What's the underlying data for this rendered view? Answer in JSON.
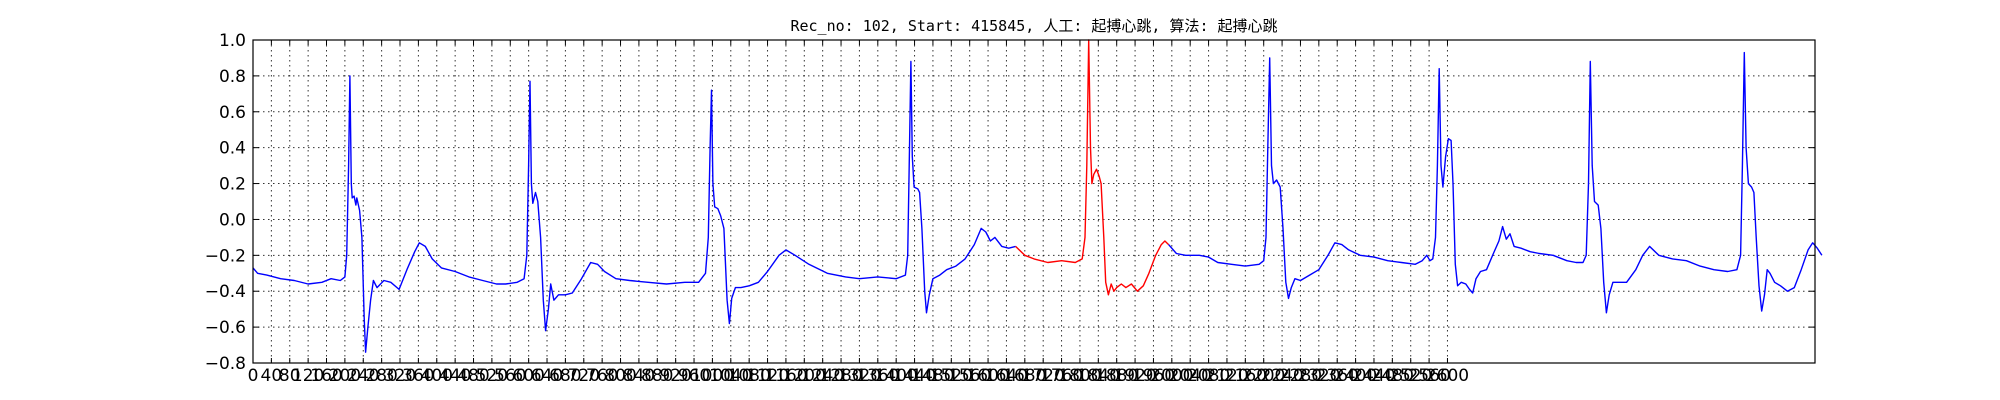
{
  "chart_data": {
    "type": "line",
    "title": "Rec_no: 102, Start: 415845, 人工: 起搏心跳, 算法: 起搏心跳",
    "xlabel": "",
    "ylabel": "",
    "xlim": [
      0,
      3400
    ],
    "ylim": [
      -0.8,
      1.0
    ],
    "yticks": [
      1.0,
      0.8,
      0.6,
      0.4,
      0.2,
      0.0,
      -0.2,
      -0.4,
      -0.6,
      -0.8
    ],
    "ytick_labels": [
      "1.0",
      "0.8",
      "0.6",
      "0.4",
      "0.2",
      "0.0",
      "−0.2",
      "−0.4",
      "−0.6",
      "−0.8"
    ],
    "xticks": [
      0,
      40,
      80,
      120,
      160,
      200,
      240,
      280,
      320,
      360,
      400,
      440,
      480,
      520,
      560,
      600,
      640,
      680,
      720,
      760,
      800,
      840,
      880,
      920,
      960,
      1000,
      1040,
      1080,
      1120,
      1160,
      1200,
      1240,
      1280,
      1320,
      1360,
      1400,
      1440,
      1480,
      1520,
      1560,
      1600,
      1640,
      1680,
      1720,
      1760,
      1800,
      1840,
      1880,
      1920,
      1960,
      2000,
      2040,
      2080,
      2120,
      2160,
      2200,
      2240,
      2280,
      2320,
      2360,
      2400,
      2440,
      2480,
      2520,
      2560,
      2600
    ],
    "xtick_labels": [
      "0",
      "40",
      "80",
      "120",
      "160",
      "200",
      "240",
      "280",
      "320",
      "360",
      "400",
      "440",
      "480",
      "520",
      "560",
      "600",
      "640",
      "680",
      "720",
      "760",
      "800",
      "840",
      "880",
      "920",
      "960",
      "1000",
      "1040",
      "1080",
      "1120",
      "1160",
      "1200",
      "1240",
      "1280",
      "1320",
      "1360",
      "1400",
      "1440",
      "1480",
      "1520",
      "1560",
      "1600",
      "1640",
      "1680",
      "1720",
      "1760",
      "1800",
      "1840",
      "1880",
      "1920",
      "1960",
      "2000",
      "2040",
      "2080",
      "2120",
      "2160",
      "2200",
      "2240",
      "2280",
      "2320",
      "2360",
      "2400",
      "2440",
      "2480",
      "2520",
      "2560",
      "2600"
    ],
    "grid": true,
    "series": [
      {
        "color": "#0000ff",
        "points": [
          [
            0,
            -0.27
          ],
          [
            10,
            -0.3
          ],
          [
            30,
            -0.31
          ],
          [
            60,
            -0.33
          ],
          [
            90,
            -0.34
          ],
          [
            120,
            -0.36
          ],
          [
            150,
            -0.35
          ],
          [
            170,
            -0.33
          ],
          [
            190,
            -0.34
          ],
          [
            200,
            -0.32
          ],
          [
            204,
            -0.2
          ],
          [
            208,
            0.3
          ],
          [
            211,
            0.8
          ],
          [
            214,
            0.2
          ],
          [
            216,
            0.12
          ],
          [
            220,
            0.13
          ],
          [
            224,
            0.08
          ],
          [
            226,
            0.12
          ],
          [
            232,
            0.05
          ],
          [
            237,
            -0.1
          ],
          [
            242,
            -0.55
          ],
          [
            245,
            -0.74
          ],
          [
            250,
            -0.6
          ],
          [
            256,
            -0.45
          ],
          [
            262,
            -0.34
          ],
          [
            270,
            -0.38
          ],
          [
            285,
            -0.34
          ],
          [
            300,
            -0.35
          ],
          [
            318,
            -0.39
          ],
          [
            335,
            -0.28
          ],
          [
            352,
            -0.18
          ],
          [
            362,
            -0.13
          ],
          [
            375,
            -0.15
          ],
          [
            390,
            -0.22
          ],
          [
            410,
            -0.27
          ],
          [
            440,
            -0.29
          ],
          [
            470,
            -0.32
          ],
          [
            500,
            -0.34
          ],
          [
            530,
            -0.36
          ],
          [
            550,
            -0.36
          ],
          [
            575,
            -0.35
          ],
          [
            590,
            -0.33
          ],
          [
            596,
            -0.2
          ],
          [
            600,
            0.3
          ],
          [
            603,
            0.77
          ],
          [
            606,
            0.2
          ],
          [
            609,
            0.09
          ],
          [
            615,
            0.15
          ],
          [
            620,
            0.1
          ],
          [
            626,
            -0.1
          ],
          [
            632,
            -0.45
          ],
          [
            637,
            -0.62
          ],
          [
            643,
            -0.5
          ],
          [
            648,
            -0.36
          ],
          [
            655,
            -0.45
          ],
          [
            665,
            -0.42
          ],
          [
            680,
            -0.42
          ],
          [
            695,
            -0.41
          ],
          [
            715,
            -0.33
          ],
          [
            735,
            -0.24
          ],
          [
            750,
            -0.25
          ],
          [
            765,
            -0.29
          ],
          [
            790,
            -0.33
          ],
          [
            820,
            -0.34
          ],
          [
            860,
            -0.35
          ],
          [
            900,
            -0.36
          ],
          [
            940,
            -0.35
          ],
          [
            970,
            -0.35
          ],
          [
            985,
            -0.3
          ],
          [
            991,
            -0.1
          ],
          [
            995,
            0.4
          ],
          [
            998,
            0.72
          ],
          [
            1001,
            0.2
          ],
          [
            1005,
            0.07
          ],
          [
            1012,
            0.06
          ],
          [
            1018,
            0.02
          ],
          [
            1025,
            -0.05
          ],
          [
            1032,
            -0.45
          ],
          [
            1037,
            -0.58
          ],
          [
            1042,
            -0.44
          ],
          [
            1050,
            -0.38
          ],
          [
            1062,
            -0.38
          ],
          [
            1080,
            -0.37
          ],
          [
            1100,
            -0.35
          ],
          [
            1120,
            -0.29
          ],
          [
            1145,
            -0.2
          ],
          [
            1160,
            -0.17
          ],
          [
            1180,
            -0.2
          ],
          [
            1210,
            -0.25
          ],
          [
            1250,
            -0.3
          ],
          [
            1290,
            -0.32
          ],
          [
            1320,
            -0.33
          ],
          [
            1360,
            -0.32
          ],
          [
            1400,
            -0.33
          ],
          [
            1420,
            -0.31
          ],
          [
            1425,
            -0.2
          ],
          [
            1429,
            0.4
          ],
          [
            1432,
            0.88
          ],
          [
            1435,
            0.35
          ],
          [
            1439,
            0.18
          ],
          [
            1447,
            0.17
          ],
          [
            1451,
            0.15
          ],
          [
            1456,
            -0.05
          ],
          [
            1462,
            -0.4
          ],
          [
            1466,
            -0.52
          ],
          [
            1472,
            -0.42
          ],
          [
            1480,
            -0.33
          ],
          [
            1495,
            -0.31
          ],
          [
            1510,
            -0.28
          ],
          [
            1530,
            -0.26
          ],
          [
            1550,
            -0.22
          ],
          [
            1570,
            -0.14
          ],
          [
            1585,
            -0.05
          ],
          [
            1595,
            -0.07
          ],
          [
            1605,
            -0.12
          ],
          [
            1615,
            -0.1
          ],
          [
            1630,
            -0.15
          ],
          [
            1645,
            -0.16
          ],
          [
            1660,
            -0.15
          ]
        ]
      },
      {
        "color": "#ff0000",
        "points": [
          [
            1660,
            -0.15
          ],
          [
            1680,
            -0.2
          ],
          [
            1700,
            -0.22
          ],
          [
            1730,
            -0.24
          ],
          [
            1760,
            -0.23
          ],
          [
            1790,
            -0.24
          ],
          [
            1805,
            -0.22
          ],
          [
            1811,
            -0.1
          ],
          [
            1815,
            0.3
          ],
          [
            1819,
            1.0
          ],
          [
            1823,
            0.4
          ],
          [
            1826,
            0.2
          ],
          [
            1830,
            0.25
          ],
          [
            1836,
            0.28
          ],
          [
            1842,
            0.24
          ],
          [
            1846,
            0.2
          ],
          [
            1852,
            -0.1
          ],
          [
            1856,
            -0.35
          ],
          [
            1862,
            -0.42
          ],
          [
            1868,
            -0.36
          ],
          [
            1874,
            -0.4
          ],
          [
            1880,
            -0.38
          ],
          [
            1890,
            -0.36
          ],
          [
            1900,
            -0.38
          ],
          [
            1912,
            -0.36
          ],
          [
            1925,
            -0.4
          ],
          [
            1938,
            -0.37
          ],
          [
            1950,
            -0.3
          ],
          [
            1965,
            -0.2
          ],
          [
            1977,
            -0.14
          ],
          [
            1985,
            -0.12
          ],
          [
            1993,
            -0.14
          ]
        ]
      },
      {
        "color": "#0000ff",
        "points": [
          [
            1993,
            -0.14
          ],
          [
            2010,
            -0.19
          ],
          [
            2030,
            -0.2
          ],
          [
            2060,
            -0.2
          ],
          [
            2080,
            -0.21
          ],
          [
            2100,
            -0.24
          ],
          [
            2130,
            -0.25
          ],
          [
            2160,
            -0.26
          ],
          [
            2190,
            -0.25
          ],
          [
            2200,
            -0.23
          ],
          [
            2205,
            -0.1
          ],
          [
            2209,
            0.4
          ],
          [
            2213,
            0.9
          ],
          [
            2217,
            0.3
          ],
          [
            2221,
            0.2
          ],
          [
            2228,
            0.22
          ],
          [
            2236,
            0.18
          ],
          [
            2242,
            -0.05
          ],
          [
            2248,
            -0.35
          ],
          [
            2254,
            -0.44
          ],
          [
            2260,
            -0.38
          ],
          [
            2268,
            -0.33
          ],
          [
            2280,
            -0.34
          ],
          [
            2300,
            -0.31
          ],
          [
            2320,
            -0.28
          ],
          [
            2340,
            -0.2
          ],
          [
            2355,
            -0.13
          ],
          [
            2370,
            -0.14
          ],
          [
            2385,
            -0.17
          ],
          [
            2410,
            -0.2
          ],
          [
            2440,
            -0.21
          ],
          [
            2470,
            -0.23
          ],
          [
            2500,
            -0.24
          ],
          [
            2530,
            -0.25
          ],
          [
            2545,
            -0.23
          ],
          [
            2555,
            -0.2
          ],
          [
            2562,
            -0.23
          ],
          [
            2568,
            -0.22
          ],
          [
            2574,
            -0.1
          ],
          [
            2578,
            0.3
          ],
          [
            2582,
            0.84
          ],
          [
            2586,
            0.3
          ],
          [
            2590,
            0.18
          ],
          [
            2596,
            0.35
          ],
          [
            2602,
            0.45
          ],
          [
            2608,
            0.44
          ],
          [
            2612,
            0.2
          ],
          [
            2617,
            -0.25
          ],
          [
            2622,
            -0.37
          ],
          [
            2630,
            -0.35
          ],
          [
            2640,
            -0.36
          ],
          [
            2648,
            -0.39
          ],
          [
            2655,
            -0.41
          ],
          [
            2662,
            -0.33
          ],
          [
            2672,
            -0.29
          ],
          [
            2685,
            -0.28
          ],
          [
            2700,
            -0.19
          ],
          [
            2712,
            -0.12
          ],
          [
            2720,
            -0.04
          ],
          [
            2728,
            -0.11
          ],
          [
            2736,
            -0.08
          ],
          [
            2745,
            -0.15
          ],
          [
            2760,
            -0.16
          ],
          [
            2780,
            -0.18
          ],
          [
            2800,
            -0.19
          ],
          [
            2830,
            -0.2
          ],
          [
            2860,
            -0.23
          ],
          [
            2880,
            -0.24
          ],
          [
            2895,
            -0.24
          ],
          [
            2902,
            -0.2
          ],
          [
            2907,
            0.2
          ],
          [
            2911,
            0.88
          ],
          [
            2915,
            0.3
          ],
          [
            2920,
            0.1
          ],
          [
            2928,
            0.08
          ],
          [
            2934,
            -0.05
          ],
          [
            2940,
            -0.35
          ],
          [
            2946,
            -0.52
          ],
          [
            2952,
            -0.42
          ],
          [
            2960,
            -0.35
          ],
          [
            2975,
            -0.35
          ],
          [
            2990,
            -0.35
          ],
          [
            3010,
            -0.28
          ],
          [
            3025,
            -0.2
          ],
          [
            3040,
            -0.15
          ],
          [
            3060,
            -0.2
          ],
          [
            3090,
            -0.22
          ],
          [
            3120,
            -0.23
          ],
          [
            3150,
            -0.26
          ],
          [
            3180,
            -0.28
          ],
          [
            3210,
            -0.29
          ],
          [
            3230,
            -0.28
          ],
          [
            3238,
            -0.2
          ],
          [
            3242,
            0.3
          ],
          [
            3246,
            0.93
          ],
          [
            3250,
            0.4
          ],
          [
            3255,
            0.2
          ],
          [
            3262,
            0.18
          ],
          [
            3267,
            0.15
          ],
          [
            3272,
            -0.1
          ],
          [
            3278,
            -0.37
          ],
          [
            3284,
            -0.51
          ],
          [
            3290,
            -0.42
          ],
          [
            3296,
            -0.28
          ],
          [
            3302,
            -0.3
          ],
          [
            3312,
            -0.35
          ],
          [
            3325,
            -0.37
          ],
          [
            3340,
            -0.4
          ],
          [
            3355,
            -0.38
          ],
          [
            3370,
            -0.28
          ],
          [
            3385,
            -0.17
          ],
          [
            3395,
            -0.13
          ],
          [
            3405,
            -0.16
          ],
          [
            3415,
            -0.2
          ]
        ]
      }
    ]
  }
}
